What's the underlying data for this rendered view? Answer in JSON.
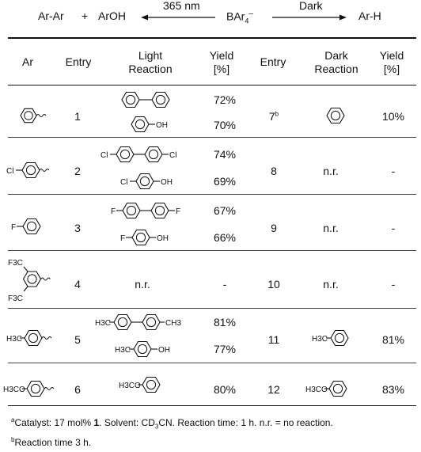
{
  "scheme": {
    "left_product": "Ar-Ar",
    "plus": "+",
    "right_of_plus": "ArOH",
    "light_condition": "365 nm",
    "reagent": "BAr4–",
    "dark_condition": "Dark",
    "dark_product": "Ar-H"
  },
  "headers": {
    "ar": "Ar",
    "entry": "Entry",
    "light": [
      "Light",
      "Reaction"
    ],
    "yield": [
      "Yield",
      "[%]"
    ],
    "entry2": "Entry",
    "dark": [
      "Dark",
      "Reaction"
    ],
    "yield2": [
      "Yield",
      "[%]"
    ]
  },
  "rows": [
    {
      "entry": "1",
      "light_yields": [
        "72%",
        "70%"
      ],
      "dark_entry": "7",
      "dark_entry_sup": "b",
      "dark_product": "benzene",
      "dark_yield": "10%"
    },
    {
      "entry": "2",
      "ar_prefix": "Cl",
      "light_labels": [
        "Cl",
        "Cl",
        "Cl",
        "OH"
      ],
      "light_yields": [
        "74%",
        "69%"
      ],
      "dark_entry": "8",
      "dark_text": "n.r.",
      "dark_yield": "-"
    },
    {
      "entry": "3",
      "ar_prefix": "F",
      "light_labels": [
        "F",
        "F",
        "F",
        "OH"
      ],
      "light_yields": [
        "67%",
        "66%"
      ],
      "dark_entry": "9",
      "dark_text": "n.r.",
      "dark_yield": "-"
    },
    {
      "entry": "4",
      "ar_labels": [
        "F3C",
        "F3C"
      ],
      "light_text": "n.r.",
      "light_yield": "-",
      "dark_entry": "10",
      "dark_text": "n.r.",
      "dark_yield": "-"
    },
    {
      "entry": "5",
      "ar_prefix": "H3C",
      "light_labels": [
        "H3C",
        "CH3",
        "H3C",
        "OH"
      ],
      "light_yields": [
        "81%",
        "77%"
      ],
      "dark_entry": "11",
      "dark_label": "H3C",
      "dark_yield": "81%"
    },
    {
      "entry": "6",
      "ar_prefix": "H3CO",
      "light_labels": [
        "H3CO"
      ],
      "light_yields": [
        "80%"
      ],
      "dark_entry": "12",
      "dark_label": "H3CO",
      "dark_yield": "83%"
    }
  ],
  "footnotes": {
    "a": {
      "mark": "a",
      "text_1": "Catalyst: 17 mol% ",
      "bold": "1",
      "text_2": ". Solvent: CD",
      "sub": "3",
      "text_3": "CN. Reaction time: 1 h. n.r. = no reaction."
    },
    "b": {
      "mark": "b",
      "text": "Reaction time 3 h."
    }
  }
}
